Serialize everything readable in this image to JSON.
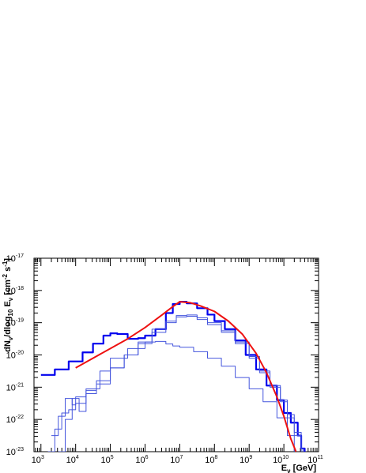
{
  "chart_data": {
    "type": "line",
    "title": "",
    "xlabel": {
      "main": "E",
      "sub": "ν",
      "unit": "[GeV]"
    },
    "ylabel": {
      "p1": "dN",
      "p2": "/dlog",
      "p3": "E",
      "p4": "[cm",
      "p5": "s",
      "sub_nu": "ν",
      "sub_10": "10",
      "sup_m2": "-2",
      "sup_m1": "-1",
      "close": "]"
    },
    "x_scale": "log",
    "y_scale": "log",
    "xlim_log10": [
      2.8,
      11
    ],
    "ylim_log10": [
      -23,
      -17
    ],
    "x_ticks": [
      {
        "base": "10",
        "exp": "3",
        "log10": 3
      },
      {
        "base": "10",
        "exp": "4",
        "log10": 4
      },
      {
        "base": "10",
        "exp": "5",
        "log10": 5
      },
      {
        "base": "10",
        "exp": "6",
        "log10": 6
      },
      {
        "base": "10",
        "exp": "7",
        "log10": 7
      },
      {
        "base": "10",
        "exp": "8",
        "log10": 8
      },
      {
        "base": "10",
        "exp": "9",
        "log10": 9
      },
      {
        "base": "10",
        "exp": "10",
        "log10": 10
      },
      {
        "base": "10",
        "exp": "11",
        "log10": 11
      }
    ],
    "y_ticks": [
      {
        "base": "10",
        "exp": "-23",
        "log10": -23
      },
      {
        "base": "10",
        "exp": "-22",
        "log10": -22
      },
      {
        "base": "10",
        "exp": "-21",
        "log10": -21
      },
      {
        "base": "10",
        "exp": "-20",
        "log10": -20
      },
      {
        "base": "10",
        "exp": "-19",
        "log10": -19
      },
      {
        "base": "10",
        "exp": "-18",
        "log10": -18
      },
      {
        "base": "10",
        "exp": "-17",
        "log10": -17
      }
    ],
    "grid": false,
    "legend": "none",
    "series": [
      {
        "kind": "step",
        "color": "#0000ee",
        "weight": "thick",
        "points_log10": [
          [
            3,
            -20.62
          ],
          [
            3.4,
            -20.45
          ],
          [
            3.8,
            -20.2
          ],
          [
            4.2,
            -19.92
          ],
          [
            4.5,
            -19.65
          ],
          [
            4.8,
            -19.4
          ],
          [
            5.0,
            -19.33
          ],
          [
            5.2,
            -19.35
          ],
          [
            5.5,
            -19.5
          ],
          [
            5.8,
            -19.48
          ],
          [
            6.0,
            -19.4
          ],
          [
            6.3,
            -19.2
          ],
          [
            6.6,
            -18.7
          ],
          [
            6.8,
            -18.42
          ],
          [
            7.0,
            -18.35
          ],
          [
            7.2,
            -18.4
          ],
          [
            7.5,
            -18.55
          ],
          [
            7.8,
            -18.75
          ],
          [
            8.0,
            -18.95
          ],
          [
            8.3,
            -19.2
          ],
          [
            8.6,
            -19.55
          ],
          [
            8.9,
            -20.0
          ],
          [
            9.2,
            -20.45
          ],
          [
            9.5,
            -20.95
          ],
          [
            9.8,
            -21.4
          ],
          [
            10.0,
            -21.8
          ],
          [
            10.2,
            -22.1
          ],
          [
            10.4,
            -22.5
          ],
          [
            10.5,
            -22.9
          ],
          [
            10.6,
            -23.0
          ]
        ]
      },
      {
        "kind": "step",
        "color": "#4455dd",
        "weight": "thin",
        "points_log10": [
          [
            3.3,
            -22.5
          ],
          [
            3.5,
            -21.9
          ],
          [
            3.7,
            -21.35
          ],
          [
            3.9,
            -21.55
          ],
          [
            4.0,
            -21.3
          ],
          [
            4.3,
            -21.05
          ],
          [
            4.7,
            -20.5
          ],
          [
            5.0,
            -20.1
          ],
          [
            5.5,
            -19.8
          ],
          [
            6.0,
            -19.6
          ],
          [
            6.3,
            -19.58
          ],
          [
            6.6,
            -19.66
          ],
          [
            6.8,
            -19.72
          ],
          [
            7.0,
            -19.76
          ],
          [
            7.4,
            -19.9
          ],
          [
            7.8,
            -20.1
          ],
          [
            8.2,
            -20.35
          ],
          [
            8.6,
            -20.7
          ],
          [
            9.0,
            -21.05
          ],
          [
            9.4,
            -21.45
          ],
          [
            9.8,
            -21.95
          ],
          [
            10.1,
            -22.5
          ],
          [
            10.3,
            -23.0
          ]
        ]
      },
      {
        "kind": "step",
        "color": "#4455dd",
        "weight": "thin",
        "points_log10": [
          [
            3.2,
            -23.0
          ],
          [
            3.4,
            -22.3
          ],
          [
            3.6,
            -21.8
          ],
          [
            3.8,
            -21.7
          ],
          [
            4.0,
            -21.5
          ],
          [
            4.3,
            -21.1
          ],
          [
            4.6,
            -20.9
          ],
          [
            5.0,
            -20.4
          ],
          [
            5.4,
            -20.0
          ],
          [
            5.8,
            -19.65
          ],
          [
            6.2,
            -19.3
          ],
          [
            6.6,
            -19.0
          ],
          [
            6.9,
            -18.82
          ],
          [
            7.2,
            -18.8
          ],
          [
            7.5,
            -18.9
          ],
          [
            7.8,
            -19.06
          ],
          [
            8.2,
            -19.3
          ],
          [
            8.6,
            -19.65
          ],
          [
            9.0,
            -20.1
          ],
          [
            9.3,
            -20.55
          ],
          [
            9.6,
            -21.0
          ],
          [
            9.9,
            -21.45
          ],
          [
            10.1,
            -21.95
          ],
          [
            10.3,
            -22.5
          ],
          [
            10.5,
            -23.0
          ]
        ]
      },
      {
        "kind": "step",
        "color": "#4455dd",
        "weight": "thin",
        "points_log10": [
          [
            3.5,
            -23.0
          ],
          [
            3.7,
            -22.0
          ],
          [
            3.9,
            -21.35
          ],
          [
            4.1,
            -21.75
          ],
          [
            4.3,
            -21.2
          ],
          [
            4.6,
            -20.8
          ],
          [
            5.0,
            -20.4
          ],
          [
            5.4,
            -20.0
          ],
          [
            5.8,
            -19.6
          ],
          [
            6.2,
            -19.2
          ],
          [
            6.6,
            -18.95
          ],
          [
            6.9,
            -18.78
          ],
          [
            7.2,
            -18.76
          ],
          [
            7.5,
            -18.85
          ],
          [
            7.8,
            -19.0
          ],
          [
            8.2,
            -19.25
          ],
          [
            8.6,
            -19.6
          ],
          [
            9.0,
            -20.05
          ],
          [
            9.3,
            -20.5
          ],
          [
            9.6,
            -20.95
          ],
          [
            9.9,
            -21.4
          ],
          [
            10.1,
            -21.85
          ],
          [
            10.3,
            -22.4
          ],
          [
            10.5,
            -22.9
          ],
          [
            10.55,
            -23.0
          ]
        ]
      },
      {
        "kind": "smooth",
        "color": "#ee1111",
        "weight": "thick",
        "points_log10": [
          [
            4.0,
            -20.4
          ],
          [
            4.5,
            -20.1
          ],
          [
            5.0,
            -19.8
          ],
          [
            5.5,
            -19.5
          ],
          [
            6.0,
            -19.15
          ],
          [
            6.5,
            -18.75
          ],
          [
            6.8,
            -18.5
          ],
          [
            7.0,
            -18.35
          ],
          [
            7.3,
            -18.38
          ],
          [
            7.6,
            -18.48
          ],
          [
            8.0,
            -18.65
          ],
          [
            8.4,
            -18.95
          ],
          [
            8.8,
            -19.35
          ],
          [
            9.2,
            -19.95
          ],
          [
            9.5,
            -20.55
          ],
          [
            9.8,
            -21.3
          ],
          [
            10.0,
            -21.9
          ],
          [
            10.2,
            -22.6
          ],
          [
            10.35,
            -23.0
          ]
        ]
      }
    ]
  }
}
